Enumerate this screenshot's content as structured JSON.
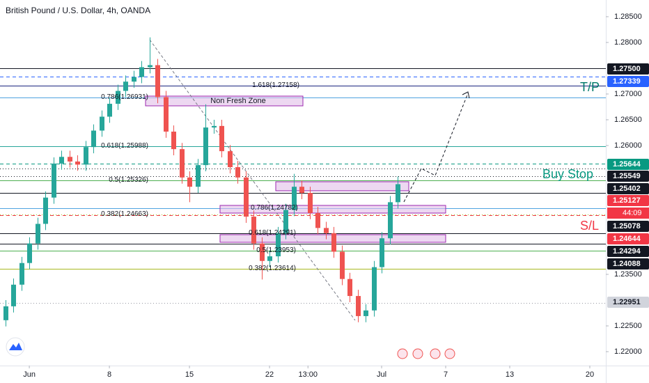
{
  "chart_data": {
    "type": "candlestick",
    "title": "British Pound / U.S. Dollar, 4h, OANDA",
    "x": [
      -1.5,
      -1,
      -0.5,
      0,
      0.5,
      1,
      1.5,
      2,
      2.5,
      3,
      3.5,
      4,
      4.5,
      5,
      5.5,
      6,
      6.5,
      7,
      7.5,
      8,
      8.5,
      9,
      9.5,
      10,
      10.5,
      11,
      11.5,
      12,
      12.5,
      13,
      13.5,
      14,
      14.5,
      15,
      15.5,
      16,
      16.5,
      17,
      17.5,
      18,
      18.5,
      19,
      19.5,
      20,
      20.5,
      21,
      21.5,
      22,
      22.5,
      23
    ],
    "open": [
      1.2261,
      1.2288,
      1.233,
      1.2372,
      1.241,
      1.2448,
      1.2499,
      1.2565,
      1.2578,
      1.2569,
      1.2563,
      1.2597,
      1.2629,
      1.2656,
      1.2681,
      1.2706,
      1.2724,
      1.2733,
      1.2752,
      1.2756,
      1.2694,
      1.2627,
      1.2593,
      1.2538,
      1.252,
      1.2562,
      1.2635,
      1.2638,
      1.2589,
      1.2558,
      1.2538,
      1.2462,
      1.241,
      1.2376,
      1.2385,
      1.243,
      1.2475,
      1.252,
      1.2508,
      1.2469,
      1.244,
      1.243,
      1.2394,
      1.2341,
      1.2308,
      1.2269,
      1.228,
      1.2364,
      1.242,
      1.249
    ],
    "high": [
      1.23,
      1.2342,
      1.2384,
      1.2422,
      1.246,
      1.2511,
      1.2577,
      1.259,
      1.259,
      1.2581,
      1.2609,
      1.2641,
      1.2668,
      1.2693,
      1.2718,
      1.2736,
      1.2745,
      1.2764,
      1.281,
      1.2768,
      1.2706,
      1.2639,
      1.2605,
      1.255,
      1.2574,
      1.268,
      1.265,
      1.265,
      1.2601,
      1.257,
      1.255,
      1.2474,
      1.2422,
      1.2397,
      1.2442,
      1.2487,
      1.2545,
      1.2532,
      1.252,
      1.2481,
      1.2452,
      1.2442,
      1.2406,
      1.2353,
      1.232,
      1.2292,
      1.2376,
      1.2432,
      1.2502,
      1.254
    ],
    "low": [
      1.2249,
      1.2276,
      1.2318,
      1.236,
      1.2398,
      1.2436,
      1.2487,
      1.2553,
      1.2557,
      1.2551,
      1.2551,
      1.2585,
      1.2617,
      1.2644,
      1.2669,
      1.2694,
      1.2712,
      1.2721,
      1.274,
      1.2682,
      1.2615,
      1.2581,
      1.2526,
      1.249,
      1.2508,
      1.255,
      1.2623,
      1.2577,
      1.2546,
      1.2526,
      1.245,
      1.2398,
      1.234,
      1.2364,
      1.2373,
      1.2418,
      1.2463,
      1.2496,
      1.2457,
      1.2428,
      1.2418,
      1.2382,
      1.2329,
      1.2296,
      1.2257,
      1.2257,
      1.2268,
      1.2352,
      1.2408,
      1.2478
    ],
    "close": [
      1.2288,
      1.233,
      1.2372,
      1.241,
      1.2448,
      1.2499,
      1.2565,
      1.2578,
      1.2569,
      1.2563,
      1.2597,
      1.2629,
      1.2656,
      1.2681,
      1.2706,
      1.2724,
      1.2733,
      1.2752,
      1.2756,
      1.2694,
      1.2627,
      1.2593,
      1.2538,
      1.252,
      1.2562,
      1.2635,
      1.2638,
      1.2589,
      1.2558,
      1.2538,
      1.2462,
      1.241,
      1.2376,
      1.2385,
      1.243,
      1.2475,
      1.252,
      1.2508,
      1.2469,
      1.244,
      1.243,
      1.2394,
      1.2341,
      1.2308,
      1.2269,
      1.228,
      1.2364,
      1.242,
      1.249,
      1.2525
    ],
    "up_color": "#26a69a",
    "down_color": "#ef5350",
    "xlim": [
      -1.83,
      36
    ],
    "xticks": [
      {
        "value": 0,
        "label": "Jun"
      },
      {
        "value": 5,
        "label": "8"
      },
      {
        "value": 10,
        "label": "15"
      },
      {
        "value": 15,
        "label": "22"
      },
      {
        "value": 17.4,
        "label": "13:00"
      },
      {
        "value": 22,
        "label": "Jul"
      },
      {
        "value": 26,
        "label": "7"
      },
      {
        "value": 30,
        "label": "13"
      },
      {
        "value": 35,
        "label": "20"
      }
    ],
    "ylim": [
      1.21662,
      1.28824
    ],
    "yticks": [
      {
        "value": 1.285,
        "label": "1.28500"
      },
      {
        "value": 1.28,
        "label": "1.28000"
      },
      {
        "value": 1.27,
        "label": "1.27000"
      },
      {
        "value": 1.265,
        "label": "1.26500"
      },
      {
        "value": 1.26,
        "label": "1.26000"
      },
      {
        "value": 1.235,
        "label": "1.23500"
      },
      {
        "value": 1.225,
        "label": "1.22500"
      },
      {
        "value": 1.22,
        "label": "1.22000"
      }
    ],
    "grid": false,
    "levels": [
      {
        "value": 1.275,
        "color": "#131722",
        "style": "solid"
      },
      {
        "value": 1.27339,
        "color": "#2962ff",
        "style": "dashed"
      },
      {
        "value": 1.27158,
        "color": "#1a237e",
        "style": "solid",
        "label": "1.618(1.27158)"
      },
      {
        "value": 1.26931,
        "color": "#4fa3e0",
        "style": "solid",
        "label": "0.786(1.26931)"
      },
      {
        "value": 1.25988,
        "color": "#26a69a",
        "style": "solid",
        "label": "0.618(1.25988)"
      },
      {
        "value": 1.25644,
        "color": "#089981",
        "style": "dashed"
      },
      {
        "value": 1.25549,
        "color": "#131722",
        "style": "dotted"
      },
      {
        "value": 1.25402,
        "color": "#131722",
        "style": "dotted"
      },
      {
        "value": 1.25326,
        "color": "#4caf50",
        "style": "solid",
        "label": "0.5(1.25326)"
      },
      {
        "value": 1.25078,
        "color": "#131722",
        "style": "solid"
      },
      {
        "value": 1.24782,
        "color": "#4fa3e0",
        "style": "solid",
        "label": "0.786(1.24782)"
      },
      {
        "value": 1.24663,
        "color": "#a8b820",
        "style": "dotted",
        "label": "0.382(1.24663)"
      },
      {
        "value": 1.24644,
        "color": "#f23645",
        "style": "dashed"
      },
      {
        "value": 1.24291,
        "color": "#26a69a",
        "style": "solid",
        "label": "0.618(1.24291)"
      },
      {
        "value": 1.24294,
        "color": "#131722",
        "style": "solid"
      },
      {
        "value": 1.24088,
        "color": "#131722",
        "style": "solid"
      },
      {
        "value": 1.23953,
        "color": "#4caf50",
        "style": "solid",
        "label": "0.5(1.23953)"
      },
      {
        "value": 1.23614,
        "color": "#a8b820",
        "style": "solid",
        "label": "0.382(1.23614)"
      },
      {
        "value": 1.22951,
        "color": "#9598a1",
        "style": "dotted"
      }
    ],
    "price_tags": [
      {
        "value": 1.275,
        "label": "1.27500",
        "color": "#131722"
      },
      {
        "value": 1.27339,
        "label": "1.27339",
        "color": "#2962ff"
      },
      {
        "value": 1.25644,
        "label": "1.25644",
        "color": "#089981"
      },
      {
        "value": 1.25549,
        "label": "1.25549",
        "color": "#131722"
      },
      {
        "value": 1.25402,
        "label": "1.25402",
        "color": "#131722"
      },
      {
        "value": 1.25127,
        "label": "1.25127",
        "color": "#f23645"
      },
      {
        "value": 1.25078,
        "label": "1.25078",
        "color": "#131722"
      },
      {
        "value": 1.24644,
        "label": "1.24644",
        "color": "#f23645"
      },
      {
        "value": 1.24294,
        "label": "1.24294",
        "color": "#131722"
      },
      {
        "value": 1.24088,
        "label": "1.24088",
        "color": "#131722"
      },
      {
        "value": 1.22951,
        "label": "1.22951",
        "color": "#d1d4dc"
      }
    ],
    "countdown": "44:09",
    "zones": [
      {
        "top": 1.26959,
        "bottom": 1.2677,
        "label": "Non Fresh Zone"
      },
      {
        "top": 1.25297,
        "bottom": 1.25122
      },
      {
        "top": 1.24838,
        "bottom": 1.24689
      },
      {
        "top": 1.2427,
        "bottom": 1.24122
      }
    ],
    "annotations": [
      {
        "text": "T/P",
        "color": "#00796b"
      },
      {
        "text": "Buy Stop",
        "color": "#089981"
      },
      {
        "text": "S/L",
        "color": "#f23645"
      }
    ]
  }
}
